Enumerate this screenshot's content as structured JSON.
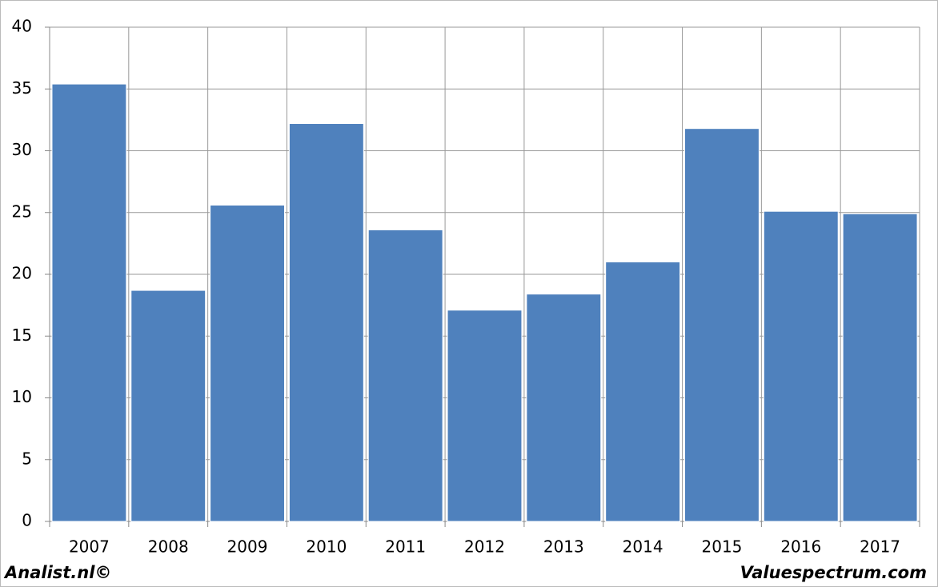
{
  "chart_data": {
    "type": "bar",
    "categories": [
      "2007",
      "2008",
      "2009",
      "2010",
      "2011",
      "2012",
      "2013",
      "2014",
      "2015",
      "2016",
      "2017"
    ],
    "values": [
      35.4,
      18.7,
      25.6,
      32.2,
      23.6,
      17.1,
      18.4,
      21.0,
      31.8,
      25.1,
      24.9
    ],
    "color": "#4f81bd",
    "ylim": [
      0,
      40
    ],
    "yticks": [
      0,
      5,
      10,
      15,
      20,
      25,
      30,
      35,
      40
    ],
    "grid": true
  },
  "footer": {
    "left": "Analist.nl©",
    "right": "Valuespectrum.com"
  }
}
